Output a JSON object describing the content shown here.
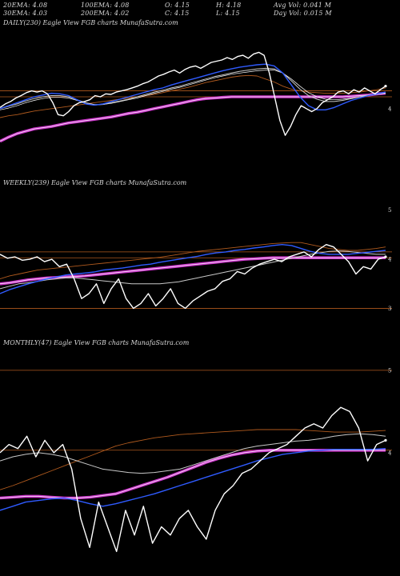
{
  "header": {
    "row1": [
      {
        "label": "20EMA",
        "value": "4.08"
      },
      {
        "label": "100EMA",
        "value": "4.08"
      },
      {
        "label": "O",
        "value": "4.15"
      },
      {
        "label": "H",
        "value": "4.18"
      },
      {
        "label": "Avg Vol",
        "value": "0.041 M"
      }
    ],
    "row2": [
      {
        "label": "30EMA",
        "value": "4.03"
      },
      {
        "label": "200EMA",
        "value": "4.02"
      },
      {
        "label": "C",
        "value": "4.15"
      },
      {
        "label": "L",
        "value": "4.15"
      },
      {
        "label": "Day Vol",
        "value": "0.015 M"
      }
    ]
  },
  "colors": {
    "background": "#000000",
    "price": "#ffffff",
    "ema_short": "#2f5bff",
    "ema_long": "#cc33cc",
    "hline": "#b05a1e",
    "ema_mid": "#c8c8c8"
  },
  "chart_data": [
    {
      "type": "line",
      "title": "DAILY(230) Eagle  View  FGB charts MunafaSutra.com",
      "ylim": [
        3.0,
        5.4
      ],
      "y_ticks": [
        "4"
      ],
      "series": [
        {
          "key": "price",
          "values": [
            4.02,
            4.08,
            4.12,
            4.18,
            4.22,
            4.27,
            4.3,
            4.28,
            4.3,
            4.25,
            4.1,
            3.9,
            3.88,
            3.95,
            4.05,
            4.1,
            4.12,
            4.15,
            4.22,
            4.2,
            4.25,
            4.24,
            4.28,
            4.3,
            4.32,
            4.35,
            4.38,
            4.42,
            4.45,
            4.5,
            4.55,
            4.58,
            4.62,
            4.65,
            4.6,
            4.66,
            4.7,
            4.72,
            4.68,
            4.73,
            4.78,
            4.8,
            4.82,
            4.86,
            4.83,
            4.88,
            4.9,
            4.85,
            4.92,
            4.95,
            4.9,
            4.6,
            4.2,
            3.8,
            3.55,
            3.7,
            3.9,
            4.05,
            4.0,
            3.95,
            4.0,
            4.1,
            4.15,
            4.2,
            4.28,
            4.3,
            4.25,
            4.32,
            4.28,
            4.35,
            4.3,
            4.25,
            4.32,
            4.38
          ]
        },
        {
          "key": "ema_mid",
          "values": [
            4.0,
            4.04,
            4.08,
            4.13,
            4.17,
            4.2,
            4.22,
            4.22,
            4.2,
            4.15,
            4.1,
            4.06,
            4.07,
            4.1,
            4.13,
            4.16,
            4.2,
            4.24,
            4.28,
            4.31,
            4.35,
            4.38,
            4.42,
            4.46,
            4.5,
            4.54,
            4.57,
            4.6,
            4.63,
            4.65,
            4.67,
            4.68,
            4.67,
            4.6,
            4.47,
            4.33,
            4.22,
            4.16,
            4.12,
            4.12,
            4.14,
            4.17,
            4.2,
            4.23,
            4.25,
            4.27
          ]
        },
        {
          "key": "ema_mid2",
          "values": [
            3.98,
            4.01,
            4.05,
            4.1,
            4.14,
            4.17,
            4.19,
            4.19,
            4.18,
            4.14,
            4.1,
            4.07,
            4.07,
            4.09,
            4.12,
            4.15,
            4.18,
            4.22,
            4.26,
            4.29,
            4.33,
            4.36,
            4.4,
            4.44,
            4.48,
            4.52,
            4.55,
            4.58,
            4.6,
            4.62,
            4.64,
            4.65,
            4.65,
            4.6,
            4.5,
            4.38,
            4.27,
            4.2,
            4.16,
            4.15,
            4.16,
            4.18,
            4.2,
            4.22,
            4.24,
            4.26
          ]
        },
        {
          "key": "ema_short",
          "values": [
            4.0,
            4.05,
            4.1,
            4.15,
            4.2,
            4.23,
            4.26,
            4.25,
            4.22,
            4.15,
            4.08,
            4.06,
            4.08,
            4.12,
            4.16,
            4.2,
            4.24,
            4.28,
            4.32,
            4.35,
            4.4,
            4.44,
            4.48,
            4.52,
            4.56,
            4.6,
            4.64,
            4.67,
            4.7,
            4.72,
            4.74,
            4.75,
            4.72,
            4.6,
            4.4,
            4.2,
            4.05,
            3.98,
            3.98,
            4.02,
            4.08,
            4.14,
            4.18,
            4.22,
            4.25,
            4.28
          ]
        },
        {
          "key": "ema_long",
          "values": [
            3.45,
            3.52,
            3.58,
            3.62,
            3.66,
            3.68,
            3.7,
            3.73,
            3.76,
            3.78,
            3.8,
            3.82,
            3.84,
            3.86,
            3.89,
            3.92,
            3.94,
            3.97,
            4.0,
            4.03,
            4.06,
            4.09,
            4.12,
            4.15,
            4.17,
            4.18,
            4.19,
            4.2,
            4.2,
            4.2,
            4.2,
            4.2,
            4.2,
            4.2,
            4.2,
            4.2,
            4.2,
            4.2,
            4.2,
            4.2,
            4.2,
            4.21,
            4.22,
            4.23,
            4.25,
            4.26
          ]
        },
        {
          "key": "ema_brown",
          "values": [
            3.85,
            3.88,
            3.9,
            3.93,
            3.96,
            3.98,
            4.0,
            4.02,
            4.04,
            4.06,
            4.08,
            4.1,
            4.12,
            4.14,
            4.16,
            4.18,
            4.2,
            4.22,
            4.24,
            4.27,
            4.3,
            4.33,
            4.36,
            4.4,
            4.44,
            4.47,
            4.5,
            4.53,
            4.55,
            4.56,
            4.55,
            4.5,
            4.45,
            4.38,
            4.33,
            4.3,
            4.28,
            4.27,
            4.26,
            4.26,
            4.26,
            4.27,
            4.28,
            4.3,
            4.32,
            4.35
          ]
        }
      ],
      "hlines": [
        4.2,
        4.3
      ]
    },
    {
      "type": "line",
      "title": "WEEKLY(239) Eagle  View  FGB charts MunafaSutra.com",
      "ylim": [
        2.6,
        5.5
      ],
      "y_ticks": [
        "5",
        "4",
        "3"
      ],
      "series": [
        {
          "key": "price",
          "values": [
            4.1,
            4.02,
            4.05,
            3.98,
            4.0,
            4.05,
            3.95,
            4.0,
            3.85,
            3.9,
            3.6,
            3.2,
            3.3,
            3.5,
            3.1,
            3.4,
            3.6,
            3.2,
            3.0,
            3.1,
            3.3,
            3.05,
            3.2,
            3.4,
            3.1,
            3.0,
            3.15,
            3.25,
            3.35,
            3.4,
            3.55,
            3.6,
            3.75,
            3.7,
            3.82,
            3.9,
            3.95,
            4.0,
            3.95,
            4.05,
            4.1,
            4.15,
            4.05,
            4.2,
            4.3,
            4.25,
            4.1,
            3.95,
            3.7,
            3.85,
            3.8,
            4.0,
            4.05
          ]
        },
        {
          "key": "ema_mid",
          "values": [
            3.4,
            3.45,
            3.5,
            3.52,
            3.55,
            3.58,
            3.6,
            3.62,
            3.62,
            3.6,
            3.58,
            3.56,
            3.54,
            3.52,
            3.5,
            3.5,
            3.5,
            3.5,
            3.52,
            3.54,
            3.58,
            3.62,
            3.66,
            3.7,
            3.74,
            3.78,
            3.82,
            3.86,
            3.9,
            3.94,
            3.98,
            4.02,
            4.06,
            4.1,
            4.13,
            4.16,
            4.17,
            4.16,
            4.14,
            4.12,
            4.1,
            4.1
          ]
        },
        {
          "key": "ema_short",
          "values": [
            3.3,
            3.38,
            3.44,
            3.5,
            3.55,
            3.6,
            3.64,
            3.68,
            3.7,
            3.72,
            3.74,
            3.78,
            3.8,
            3.82,
            3.85,
            3.88,
            3.9,
            3.94,
            3.97,
            4.0,
            4.03,
            4.06,
            4.1,
            4.13,
            4.15,
            4.18,
            4.2,
            4.23,
            4.25,
            4.28,
            4.3,
            4.28,
            4.22,
            4.16,
            4.12,
            4.1,
            4.1,
            4.1,
            4.12,
            4.14,
            4.16,
            4.18
          ]
        },
        {
          "key": "ema_long",
          "values": [
            3.5,
            3.52,
            3.55,
            3.58,
            3.6,
            3.62,
            3.63,
            3.64,
            3.65,
            3.66,
            3.68,
            3.7,
            3.72,
            3.74,
            3.76,
            3.78,
            3.8,
            3.82,
            3.84,
            3.86,
            3.88,
            3.9,
            3.92,
            3.94,
            3.96,
            3.98,
            4.0,
            4.01,
            4.02,
            4.03,
            4.03,
            4.03,
            4.03,
            4.03,
            4.03,
            4.03,
            4.03,
            4.03,
            4.03,
            4.03,
            4.03,
            4.03
          ]
        },
        {
          "key": "ema_brown",
          "values": [
            3.6,
            3.66,
            3.7,
            3.74,
            3.78,
            3.8,
            3.82,
            3.84,
            3.86,
            3.88,
            3.9,
            3.92,
            3.94,
            3.96,
            3.98,
            4.0,
            4.02,
            4.04,
            4.07,
            4.1,
            4.13,
            4.16,
            4.18,
            4.2,
            4.22,
            4.24,
            4.26,
            4.28,
            4.3,
            4.32,
            4.33,
            4.34,
            4.34,
            4.3,
            4.26,
            4.22,
            4.2,
            4.18,
            4.18,
            4.2,
            4.22,
            4.25
          ]
        }
      ],
      "hlines": [
        4.03,
        4.15,
        3.0
      ]
    },
    {
      "type": "line",
      "title": "MONTHLY(47) Eagle  View  FGB charts MunafaSutra.com",
      "ylim": [
        2.6,
        5.3
      ],
      "y_ticks": [
        "5",
        "4"
      ],
      "series": [
        {
          "key": "price",
          "values": [
            4.0,
            4.1,
            4.05,
            4.2,
            3.95,
            4.15,
            4.0,
            4.1,
            3.8,
            3.2,
            2.85,
            3.4,
            3.1,
            2.8,
            3.3,
            3.0,
            3.35,
            2.9,
            3.1,
            3.0,
            3.2,
            3.3,
            3.1,
            2.95,
            3.3,
            3.5,
            3.6,
            3.75,
            3.8,
            3.9,
            4.0,
            4.05,
            4.1,
            4.2,
            4.3,
            4.35,
            4.3,
            4.45,
            4.55,
            4.5,
            4.3,
            3.9,
            4.1,
            4.15
          ]
        },
        {
          "key": "ema_mid",
          "values": [
            3.9,
            3.95,
            3.98,
            4.0,
            3.98,
            3.95,
            3.9,
            3.85,
            3.8,
            3.78,
            3.76,
            3.75,
            3.76,
            3.78,
            3.8,
            3.85,
            3.9,
            3.95,
            4.0,
            4.05,
            4.08,
            4.1,
            4.12,
            4.14,
            4.15,
            4.17,
            4.2,
            4.22,
            4.23,
            4.22,
            4.2
          ]
        },
        {
          "key": "ema_short",
          "values": [
            3.3,
            3.35,
            3.4,
            3.42,
            3.44,
            3.45,
            3.42,
            3.38,
            3.35,
            3.38,
            3.42,
            3.46,
            3.5,
            3.55,
            3.6,
            3.65,
            3.7,
            3.75,
            3.8,
            3.85,
            3.9,
            3.94,
            3.98,
            4.0,
            4.02,
            4.03,
            4.04,
            4.04,
            4.04,
            4.04,
            4.05
          ]
        },
        {
          "key": "ema_long",
          "values": [
            3.45,
            3.46,
            3.47,
            3.47,
            3.46,
            3.45,
            3.45,
            3.46,
            3.48,
            3.5,
            3.55,
            3.6,
            3.65,
            3.7,
            3.76,
            3.82,
            3.88,
            3.93,
            3.97,
            4.0,
            4.02,
            4.03,
            4.03,
            4.03,
            4.03,
            4.03,
            4.03,
            4.03,
            4.03,
            4.03,
            4.03
          ]
        },
        {
          "key": "ema_brown",
          "values": [
            3.55,
            3.6,
            3.66,
            3.72,
            3.78,
            3.84,
            3.9,
            3.96,
            4.02,
            4.08,
            4.12,
            4.15,
            4.18,
            4.2,
            4.22,
            4.23,
            4.24,
            4.25,
            4.26,
            4.27,
            4.28,
            4.28,
            4.28,
            4.28,
            4.27,
            4.26,
            4.25,
            4.25,
            4.25,
            4.26,
            4.27
          ]
        }
      ],
      "hlines": [
        4.03,
        5.0
      ]
    }
  ]
}
